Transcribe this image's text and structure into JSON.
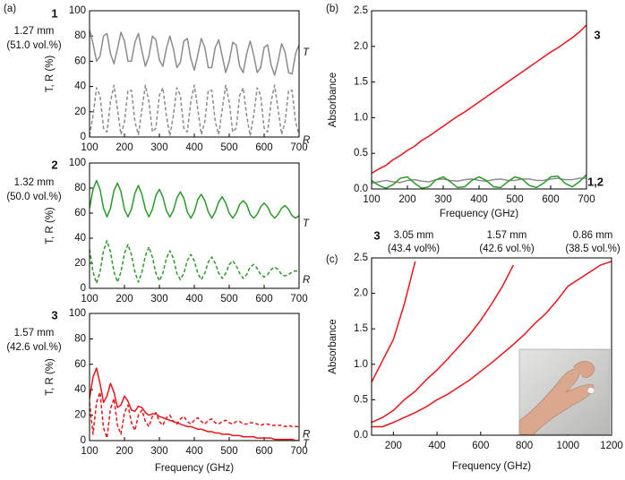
{
  "chart_data": [
    {
      "type": "line",
      "panel": "(a)",
      "sample": "1",
      "thickness": "1.27 mm",
      "fraction": "(51.0 vol.%)",
      "x": [
        100,
        110,
        120,
        130,
        140,
        150,
        160,
        170,
        180,
        190,
        200,
        210,
        220,
        230,
        240,
        250,
        260,
        270,
        280,
        290,
        300,
        310,
        320,
        330,
        340,
        350,
        360,
        370,
        380,
        390,
        400,
        410,
        420,
        430,
        440,
        450,
        460,
        470,
        480,
        490,
        500,
        510,
        520,
        530,
        540,
        550,
        560,
        570,
        580,
        590,
        600,
        610,
        620,
        630,
        640,
        650,
        660,
        670,
        680,
        690,
        700
      ],
      "series": [
        {
          "name": "T",
          "color": "#8c8c8c",
          "values": [
            85,
            74,
            60,
            64,
            80,
            82,
            66,
            58,
            70,
            83,
            76,
            60,
            60,
            75,
            82,
            68,
            56,
            64,
            80,
            77,
            61,
            56,
            70,
            80,
            70,
            55,
            59,
            76,
            78,
            62,
            53,
            65,
            78,
            71,
            55,
            55,
            71,
            77,
            64,
            51,
            60,
            75,
            73,
            56,
            51,
            66,
            76,
            65,
            51,
            55,
            71,
            73,
            57,
            49,
            60,
            74,
            67,
            51,
            50,
            66,
            73
          ]
        },
        {
          "name": "R",
          "color": "#8c8c8c",
          "dash": true,
          "values": [
            1,
            17,
            39,
            33,
            7,
            4,
            28,
            41,
            22,
            2,
            12,
            37,
            37,
            12,
            2,
            22,
            41,
            28,
            4,
            7,
            33,
            39,
            17,
            1,
            17,
            39,
            33,
            7,
            4,
            28,
            41,
            22,
            2,
            12,
            37,
            37,
            12,
            2,
            22,
            41,
            28,
            4,
            7,
            33,
            39,
            17,
            1,
            17,
            39,
            33,
            7,
            4,
            28,
            41,
            22,
            2,
            12,
            37,
            37,
            12,
            2
          ]
        }
      ],
      "xlim": [
        100,
        700
      ],
      "ylim": [
        0,
        100
      ],
      "xticks": [
        100,
        200,
        300,
        400,
        500,
        600,
        700
      ],
      "yticks": [
        0,
        20,
        40,
        60,
        80,
        100
      ],
      "ylabel": "T, R (%)"
    },
    {
      "type": "line",
      "sample": "2",
      "thickness": "1.32 mm",
      "fraction": "(50.0 vol.%)",
      "x": [
        100,
        110,
        120,
        130,
        140,
        150,
        160,
        170,
        180,
        190,
        200,
        210,
        220,
        230,
        240,
        250,
        260,
        270,
        280,
        290,
        300,
        310,
        320,
        330,
        340,
        350,
        360,
        370,
        380,
        390,
        400,
        410,
        420,
        430,
        440,
        450,
        460,
        470,
        480,
        490,
        500,
        510,
        520,
        530,
        540,
        550,
        560,
        570,
        580,
        590,
        600,
        610,
        620,
        630,
        640,
        650,
        660,
        670,
        680,
        690,
        700
      ],
      "series": [
        {
          "name": "T",
          "color": "#2a9a2a",
          "values": [
            64,
            79,
            86,
            79,
            64,
            57,
            64,
            78,
            84,
            77,
            63,
            57,
            63,
            76,
            82,
            75,
            63,
            57,
            63,
            74,
            79,
            73,
            62,
            57,
            62,
            72,
            77,
            72,
            61,
            56,
            61,
            71,
            75,
            70,
            61,
            56,
            61,
            69,
            73,
            68,
            60,
            56,
            60,
            67,
            70,
            67,
            59,
            56,
            59,
            65,
            68,
            65,
            59,
            56,
            59,
            64,
            66,
            63,
            58,
            56,
            58
          ]
        },
        {
          "name": "R",
          "color": "#2a9a2a",
          "dash": true,
          "values": [
            31,
            13,
            4,
            13,
            30,
            38,
            29,
            13,
            5,
            13,
            28,
            35,
            27,
            13,
            5,
            13,
            26,
            33,
            25,
            12,
            6,
            12,
            24,
            30,
            24,
            12,
            7,
            12,
            22,
            27,
            22,
            12,
            7,
            12,
            21,
            25,
            20,
            12,
            8,
            12,
            19,
            22,
            18,
            12,
            8,
            11,
            17,
            19,
            16,
            11,
            9,
            11,
            15,
            17,
            15,
            11,
            10,
            11,
            13,
            14,
            13
          ]
        }
      ],
      "xlim": [
        100,
        700
      ],
      "ylim": [
        0,
        100
      ],
      "xticks": [
        100,
        200,
        300,
        400,
        500,
        600,
        700
      ],
      "yticks": [
        0,
        20,
        40,
        60,
        80,
        100
      ],
      "ylabel": "T, R (%)"
    },
    {
      "type": "line",
      "sample": "3",
      "thickness": "1.57 mm",
      "fraction": "(42.6 vol.%)",
      "x": [
        100,
        110,
        120,
        130,
        140,
        150,
        160,
        170,
        180,
        190,
        200,
        210,
        220,
        230,
        240,
        250,
        260,
        270,
        280,
        290,
        300,
        310,
        320,
        330,
        340,
        350,
        360,
        370,
        380,
        390,
        400,
        410,
        420,
        430,
        440,
        450,
        460,
        470,
        480,
        490,
        500,
        510,
        520,
        530,
        540,
        550,
        560,
        570,
        580,
        590,
        600,
        610,
        620,
        630,
        640,
        650,
        660,
        670,
        680,
        690,
        700
      ],
      "series": [
        {
          "name": "T",
          "color": "#e8141a",
          "values": [
            33,
            50,
            57,
            45,
            30,
            35,
            45,
            38,
            26,
            28,
            35,
            31,
            24,
            23,
            27,
            26,
            22,
            20,
            21,
            21,
            19,
            18,
            17,
            16,
            15,
            14,
            13,
            12,
            11,
            11,
            10,
            9,
            9,
            8,
            7,
            7,
            6,
            6,
            5,
            5,
            5,
            4,
            4,
            4,
            3,
            3,
            3,
            3,
            2,
            2,
            2,
            2,
            2,
            1,
            1,
            1,
            1,
            1,
            1,
            0,
            0
          ]
        },
        {
          "name": "R",
          "color": "#e8141a",
          "dash": true,
          "values": [
            30,
            5,
            30,
            38,
            10,
            2,
            25,
            33,
            12,
            5,
            22,
            28,
            14,
            8,
            20,
            24,
            15,
            11,
            19,
            22,
            15,
            12,
            18,
            20,
            15,
            13,
            17,
            19,
            15,
            13,
            16,
            18,
            15,
            13,
            16,
            17,
            14,
            13,
            15,
            16,
            14,
            13,
            15,
            15,
            13,
            13,
            14,
            14,
            13,
            12,
            13,
            13,
            12,
            12,
            12,
            12,
            11,
            12,
            11,
            11,
            11
          ]
        }
      ],
      "xlim": [
        100,
        700
      ],
      "ylim": [
        0,
        100
      ],
      "xticks": [
        100,
        200,
        300,
        400,
        500,
        600,
        700
      ],
      "yticks": [
        0,
        20,
        40,
        60,
        80,
        100
      ],
      "ylabel": "T, R (%)",
      "xlabel": "Frequency (GHz)"
    },
    {
      "type": "line",
      "panel": "(b)",
      "labels": [
        "3",
        "1,2"
      ],
      "x": [
        100,
        120,
        140,
        160,
        180,
        200,
        220,
        240,
        260,
        280,
        300,
        320,
        340,
        360,
        380,
        400,
        420,
        440,
        460,
        480,
        500,
        520,
        540,
        560,
        580,
        600,
        620,
        640,
        660,
        680,
        700
      ],
      "series": [
        {
          "color": "#e8141a",
          "values": [
            0.22,
            0.28,
            0.33,
            0.41,
            0.47,
            0.54,
            0.6,
            0.68,
            0.74,
            0.81,
            0.88,
            0.95,
            1.02,
            1.08,
            1.15,
            1.22,
            1.29,
            1.36,
            1.43,
            1.5,
            1.57,
            1.64,
            1.71,
            1.78,
            1.85,
            1.92,
            1.98,
            2.05,
            2.12,
            2.2,
            2.3
          ]
        },
        {
          "color": "#8c8c8c",
          "values": [
            0.08,
            0.1,
            0.12,
            0.1,
            0.09,
            0.12,
            0.13,
            0.11,
            0.1,
            0.13,
            0.14,
            0.12,
            0.11,
            0.13,
            0.14,
            0.12,
            0.11,
            0.13,
            0.14,
            0.12,
            0.12,
            0.14,
            0.14,
            0.12,
            0.12,
            0.14,
            0.15,
            0.13,
            0.13,
            0.15,
            0.15
          ]
        },
        {
          "color": "#2a9a2a",
          "values": [
            0.12,
            0.05,
            0.01,
            0.06,
            0.15,
            0.17,
            0.08,
            0.01,
            0.03,
            0.13,
            0.17,
            0.1,
            0.02,
            0.03,
            0.12,
            0.17,
            0.12,
            0.03,
            0.02,
            0.1,
            0.17,
            0.14,
            0.05,
            0.02,
            0.08,
            0.17,
            0.18,
            0.08,
            0.03,
            0.1,
            0.2
          ]
        }
      ],
      "xlim": [
        100,
        700
      ],
      "ylim": [
        0,
        2.5
      ],
      "xticks": [
        100,
        200,
        300,
        400,
        500,
        600,
        700
      ],
      "yticks": [
        {
          "value": 0,
          "label": "0.0"
        },
        0.5,
        {
          "value": 1,
          "label": "1.0"
        },
        1.5,
        {
          "value": 2,
          "label": "2.0"
        },
        2.5
      ],
      "ylabel": "Absorbance",
      "xlabel": "Frequency (GHz)"
    },
    {
      "type": "line",
      "panel": "(c)",
      "sample": "3",
      "x": [
        100,
        150,
        200,
        250,
        300,
        350,
        400,
        450,
        500,
        550,
        600,
        650,
        700,
        750,
        800,
        850,
        900,
        950,
        1000,
        1050,
        1100,
        1150,
        1200
      ],
      "series": [
        {
          "name": "3.05 mm",
          "note": "(43.4 vol%)",
          "color": "#e8141a",
          "values": [
            0.75,
            1.05,
            1.35,
            1.85,
            2.45,
            null,
            null,
            null,
            null,
            null,
            null,
            null,
            null,
            null,
            null,
            null,
            null,
            null,
            null,
            null,
            null,
            null,
            null
          ]
        },
        {
          "name": "1.57 mm",
          "note": "(42.6 vol.%)",
          "color": "#e8141a",
          "values": [
            0.18,
            0.25,
            0.35,
            0.5,
            0.62,
            0.78,
            0.92,
            1.08,
            1.25,
            1.42,
            1.62,
            1.85,
            2.1,
            2.4,
            null,
            null,
            null,
            null,
            null,
            null,
            null,
            null,
            null
          ]
        },
        {
          "name": "0.86 mm",
          "note": "(38.5 vol.%)",
          "color": "#e8141a",
          "values": [
            0.12,
            0.12,
            0.18,
            0.25,
            0.32,
            0.4,
            0.5,
            0.58,
            0.68,
            0.78,
            0.9,
            1.02,
            1.15,
            1.28,
            1.42,
            1.58,
            1.72,
            1.9,
            2.1,
            2.2,
            2.3,
            2.4,
            2.45
          ]
        }
      ],
      "xlim": [
        100,
        1200
      ],
      "ylim": [
        0,
        2.5
      ],
      "xticks": [
        200,
        400,
        600,
        800,
        1000,
        1200
      ],
      "yticks": [
        {
          "value": 0,
          "label": "0.0"
        },
        0.5,
        {
          "value": 1,
          "label": "1.0"
        },
        1.5,
        {
          "value": 2,
          "label": "2.0"
        },
        2.5
      ],
      "ylabel": "Absorbance",
      "xlabel": "Frequency (GHz)"
    }
  ]
}
